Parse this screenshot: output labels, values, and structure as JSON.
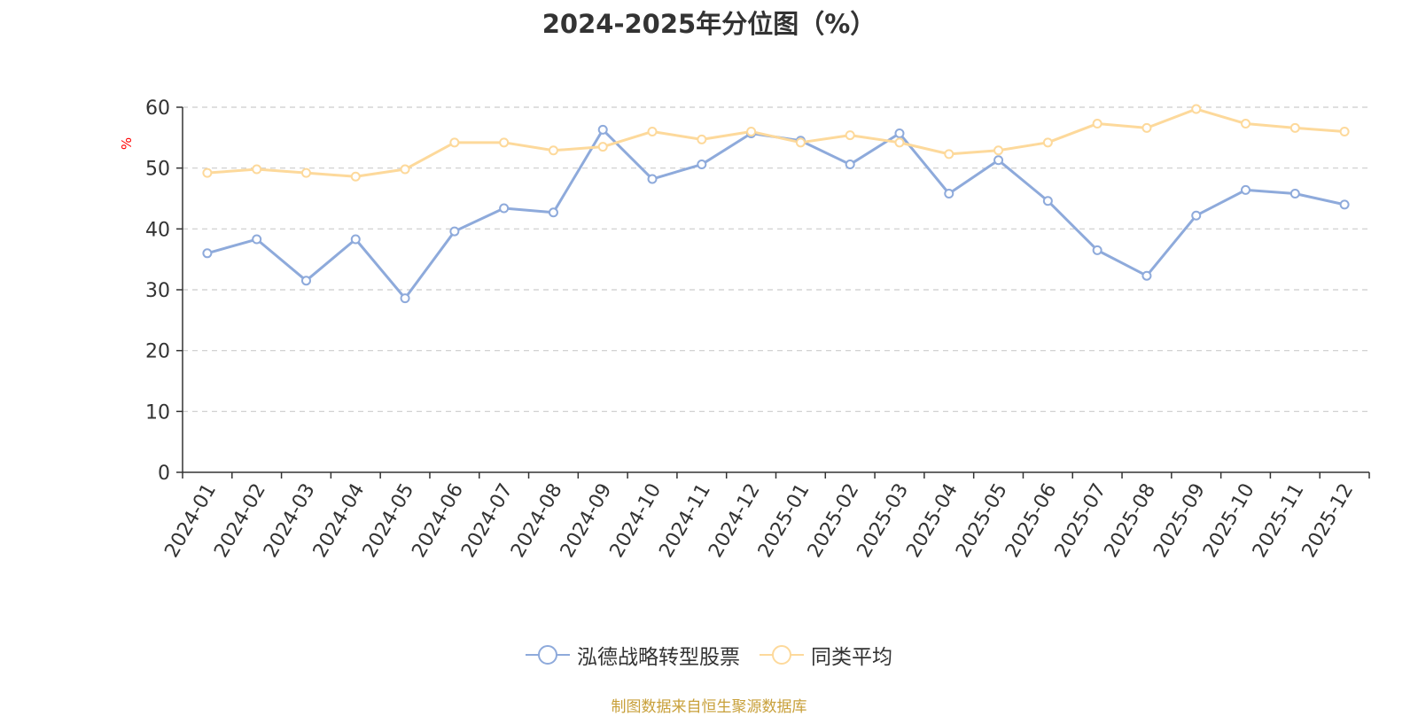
{
  "chart_data": {
    "type": "line",
    "title": "2024-2025年分位图（%）",
    "ylabel": "%",
    "ylim": [
      0,
      60
    ],
    "yticks": [
      0,
      10,
      20,
      30,
      40,
      50,
      60
    ],
    "grid": true,
    "legend_position": "bottom",
    "categories": [
      "2024-01",
      "2024-02",
      "2024-03",
      "2024-04",
      "2024-05",
      "2024-06",
      "2024-07",
      "2024-08",
      "2024-09",
      "2024-10",
      "2024-11",
      "2024-12",
      "2025-01",
      "2025-02",
      "2025-03",
      "2025-04",
      "2025-05",
      "2025-06",
      "2025-07",
      "2025-08",
      "2025-09",
      "2025-10",
      "2025-11",
      "2025-12"
    ],
    "series": [
      {
        "name": "泓德战略转型股票",
        "color": "#8eaadb",
        "values": [
          36.0,
          38.3,
          31.5,
          38.3,
          28.6,
          39.6,
          43.4,
          42.7,
          56.3,
          48.2,
          50.6,
          55.7,
          54.5,
          50.6,
          55.7,
          45.8,
          51.3,
          44.6,
          36.5,
          32.3,
          42.2,
          46.4,
          45.8,
          44.0
        ]
      },
      {
        "name": "同类平均",
        "color": "#fdd99b",
        "values": [
          49.2,
          49.8,
          49.2,
          48.6,
          49.8,
          54.2,
          54.2,
          52.9,
          53.5,
          56.0,
          54.7,
          56.0,
          54.2,
          55.4,
          54.2,
          52.3,
          52.9,
          54.2,
          57.3,
          56.6,
          59.7,
          57.3,
          56.6,
          56.0
        ]
      }
    ]
  },
  "source_text": "制图数据来自恒生聚源数据库"
}
